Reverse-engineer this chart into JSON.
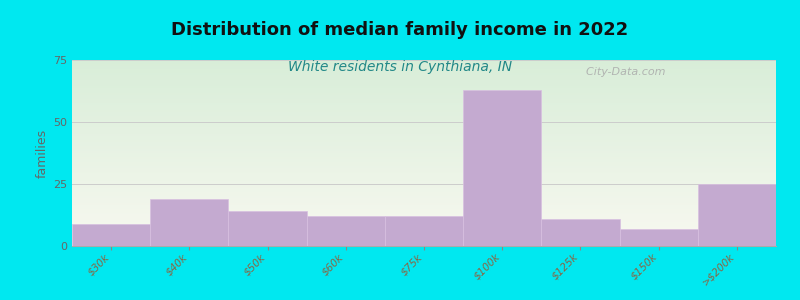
{
  "title": "Distribution of median family income in 2022",
  "subtitle": "White residents in Cynthiana, IN",
  "title_fontsize": 13,
  "subtitle_fontsize": 10,
  "ylabel": "families",
  "categories": [
    "$30k",
    "$40k",
    "$50k",
    "$60k",
    "$75k",
    "$100k",
    "$125k",
    "$150k",
    ">$200k"
  ],
  "values": [
    9,
    19,
    14,
    12,
    12,
    63,
    11,
    7,
    25
  ],
  "bar_color": "#c4aad0",
  "bar_edge_color": "#d8c0e0",
  "background_color": "#00e8f0",
  "plot_bg_top_left": "#d8edd8",
  "plot_bg_bottom_right": "#f8f8f0",
  "ylim": [
    0,
    75
  ],
  "yticks": [
    0,
    25,
    50,
    75
  ],
  "grid_color": "#cccccc",
  "watermark": "  City-Data.com",
  "watermark_color": "#aaaaaa",
  "ylabel_color": "#666666",
  "ylabel_fontsize": 9,
  "ytick_color": "#666666",
  "xtick_color": "#886644",
  "xtick_fontsize": 7.5,
  "subtitle_color": "#228888",
  "title_color": "#111111"
}
